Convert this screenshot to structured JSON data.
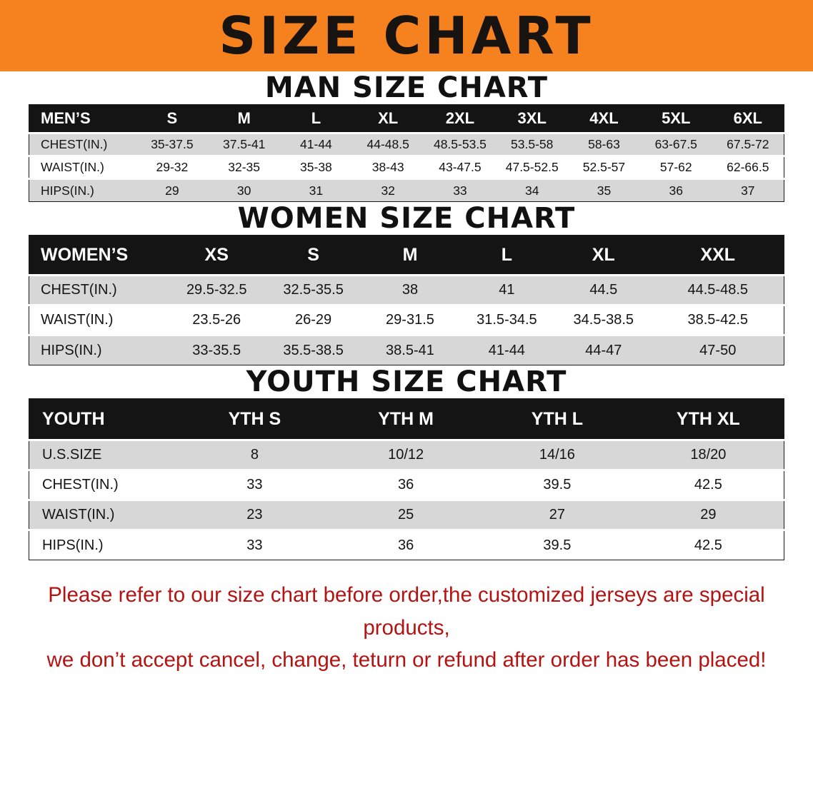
{
  "banner": {
    "title": "SIZE CHART"
  },
  "colors": {
    "banner_bg": "#f5821f",
    "header_bg": "#141414",
    "row_alt": "#d7d7d7",
    "disclaimer": "#b31312"
  },
  "men": {
    "heading": "MAN SIZE CHART",
    "table": {
      "header": [
        "MEN’S",
        "S",
        "M",
        "L",
        "XL",
        "2XL",
        "3XL",
        "4XL",
        "5XL",
        "6XL"
      ],
      "rows": [
        [
          "CHEST(IN.)",
          "35-37.5",
          "37.5-41",
          "41-44",
          "44-48.5",
          "48.5-53.5",
          "53.5-58",
          "58-63",
          "63-67.5",
          "67.5-72"
        ],
        [
          "WAIST(IN.)",
          "29-32",
          "32-35",
          "35-38",
          "38-43",
          "43-47.5",
          "47.5-52.5",
          "52.5-57",
          "57-62",
          "62-66.5"
        ],
        [
          "HIPS(IN.)",
          "29",
          "30",
          "31",
          "32",
          "33",
          "34",
          "35",
          "36",
          "37"
        ]
      ]
    }
  },
  "women": {
    "heading": "WOMEN SIZE CHART",
    "table": {
      "header": [
        "WOMEN’S",
        "XS",
        "S",
        "M",
        "L",
        "XL",
        "XXL"
      ],
      "rows": [
        [
          "CHEST(IN.)",
          "29.5-32.5",
          "32.5-35.5",
          "38",
          "41",
          "44.5",
          "44.5-48.5"
        ],
        [
          "WAIST(IN.)",
          "23.5-26",
          "26-29",
          "29-31.5",
          "31.5-34.5",
          "34.5-38.5",
          "38.5-42.5"
        ],
        [
          "HIPS(IN.)",
          "33-35.5",
          "35.5-38.5",
          "38.5-41",
          "41-44",
          "44-47",
          "47-50"
        ]
      ]
    }
  },
  "youth": {
    "heading": "YOUTH SIZE CHART",
    "table": {
      "header": [
        "YOUTH",
        "YTH S",
        "YTH M",
        "YTH L",
        "YTH XL"
      ],
      "rows": [
        [
          "U.S.SIZE",
          "8",
          "10/12",
          "14/16",
          "18/20"
        ],
        [
          "CHEST(IN.)",
          "33",
          "36",
          "39.5",
          "42.5"
        ],
        [
          "WAIST(IN.)",
          "23",
          "25",
          "27",
          "29"
        ],
        [
          "HIPS(IN.)",
          "33",
          "36",
          "39.5",
          "42.5"
        ]
      ]
    }
  },
  "disclaimer": {
    "line1": "Please refer to our size chart before order,the customized jerseys are special products,",
    "line2": "we don’t accept cancel, change, teturn or refund after order has been placed!"
  }
}
